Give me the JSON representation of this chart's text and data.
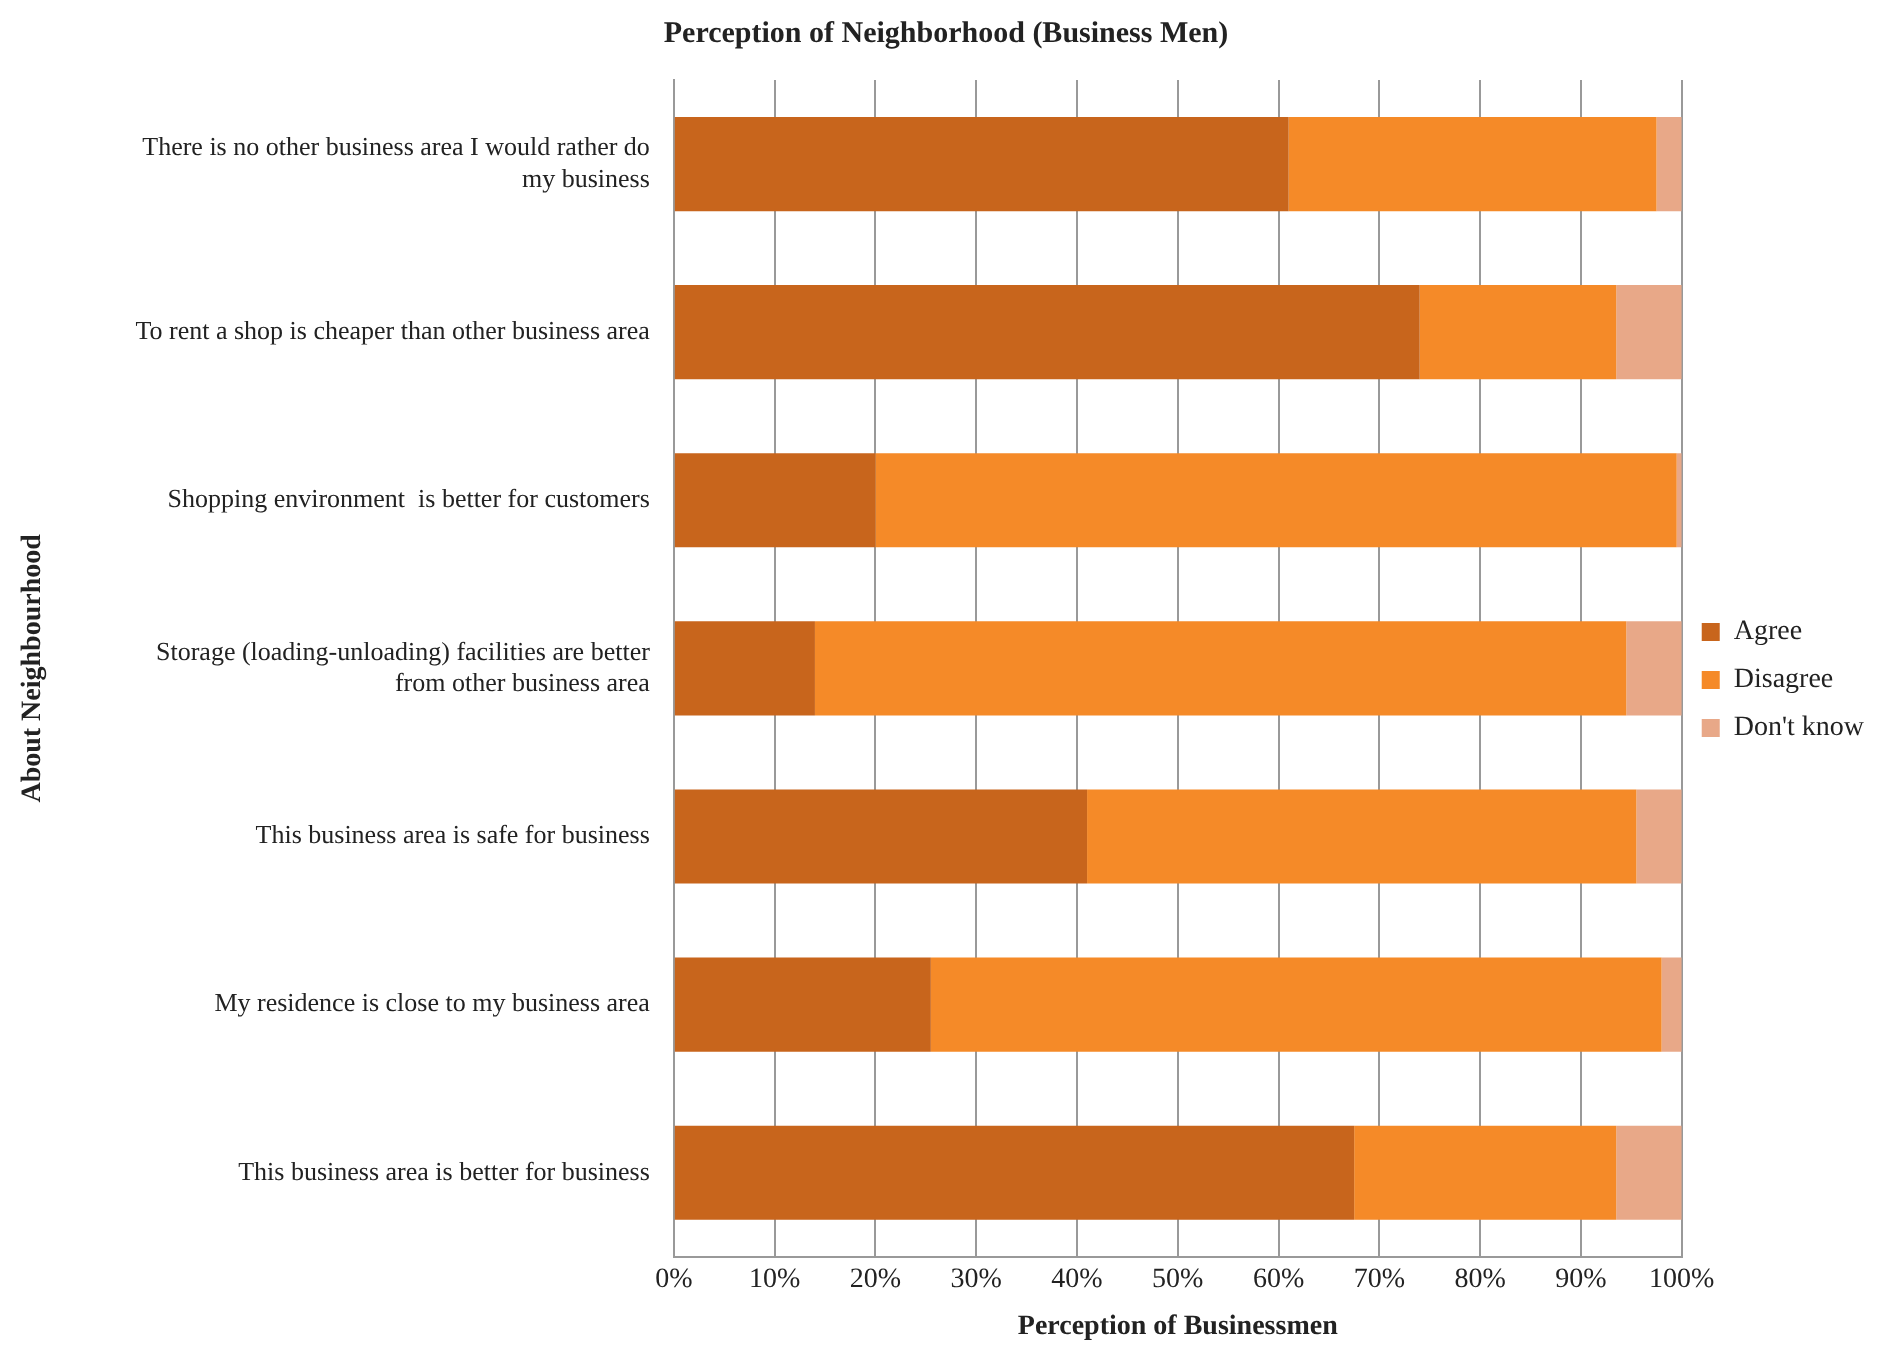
{
  "chart_data": {
    "type": "bar",
    "orientation": "horizontal",
    "stacked": true,
    "title": "Perception of Neighborhood (Business Men)",
    "xlabel": "Perception of Businessmen",
    "ylabel": "About Neighbourhood",
    "categories": [
      "There is no other business area I would rather do my business",
      "To rent a shop is cheaper than other business area",
      "Shopping environment  is better for customers",
      "Storage (loading-unloading) facilities are better from other business area",
      "This business area is safe for business",
      "My residence is close to my business area",
      "This business area is better for business"
    ],
    "series": [
      {
        "name": "Agree",
        "color": "#c8651c",
        "values": [
          61,
          74,
          20,
          14,
          41,
          25.5,
          67.5
        ]
      },
      {
        "name": "Disagree",
        "color": "#f58a28",
        "values": [
          36.5,
          19.5,
          79.5,
          80.5,
          54.5,
          72.5,
          26
        ]
      },
      {
        "name": "Don't know",
        "color": "#e8a888",
        "values": [
          2.5,
          6.5,
          0.5,
          5.5,
          4.5,
          2,
          6.5
        ]
      }
    ],
    "xlim": [
      0,
      100
    ],
    "xticks": [
      {
        "value": 0,
        "label": "0%"
      },
      {
        "value": 10,
        "label": "10%"
      },
      {
        "value": 20,
        "label": "20%"
      },
      {
        "value": 30,
        "label": "30%"
      },
      {
        "value": 40,
        "label": "40%"
      },
      {
        "value": 50,
        "label": "50%"
      },
      {
        "value": 60,
        "label": "60%"
      },
      {
        "value": 70,
        "label": "70%"
      },
      {
        "value": 80,
        "label": "80%"
      },
      {
        "value": 90,
        "label": "90%"
      },
      {
        "value": 100,
        "label": "100%"
      }
    ],
    "grid": "x",
    "legend": "right"
  }
}
